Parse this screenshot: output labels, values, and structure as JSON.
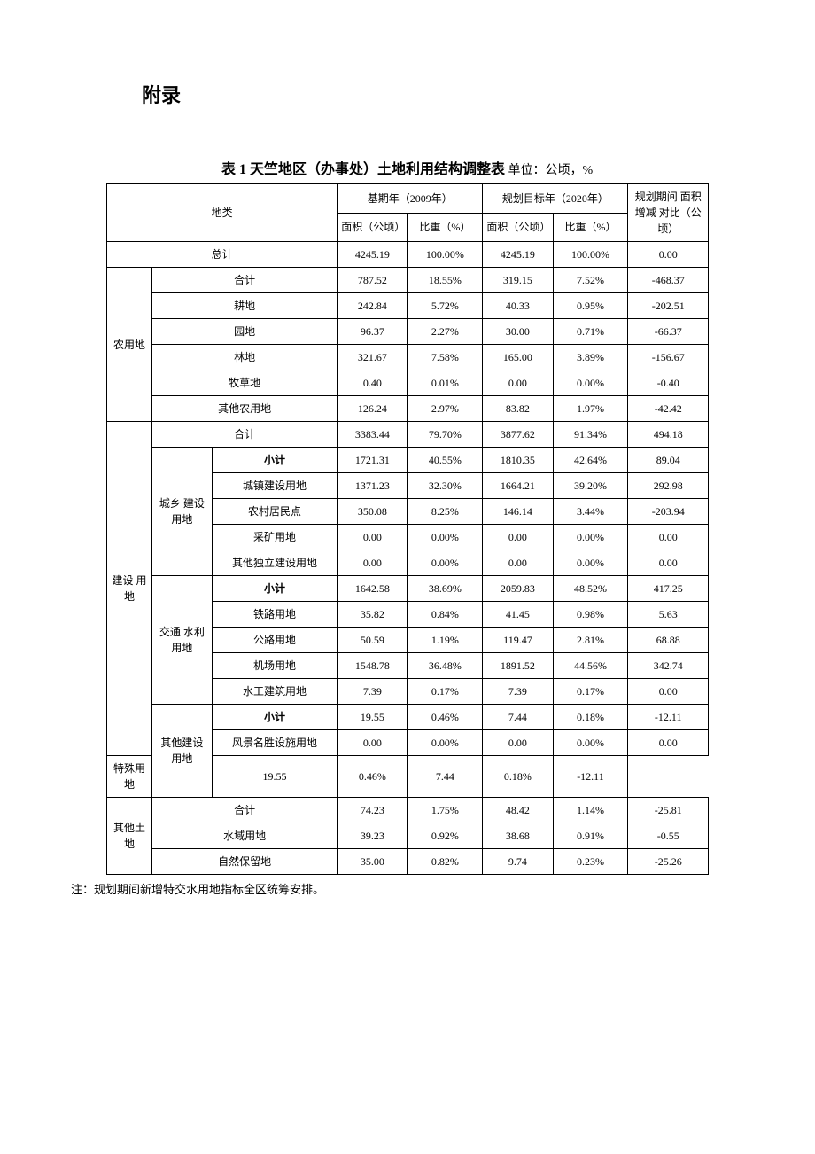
{
  "heading": "附录",
  "title_prefix": "表 1 天竺地区（办事处）土地利用结构调整表",
  "title_unit": " 单位：公顷，%",
  "header": {
    "category": "地类",
    "base_year": "基期年（2009年）",
    "target_year": "规划目标年（2020年）",
    "plan_period": "规划期间 面积增减 对比（公顷）",
    "area": "面积（公顷）",
    "pct": "比重（%）"
  },
  "rows": {
    "total": {
      "label": "总计",
      "v": [
        "4245.19",
        "100.00%",
        "4245.19",
        "100.00%",
        "0.00"
      ],
      "bold": true
    },
    "agri_sum": {
      "label": "合计",
      "v": [
        "787.52",
        "18.55%",
        "319.15",
        "7.52%",
        "-468.37"
      ],
      "bold": true
    },
    "agri": {
      "label": "农用地"
    },
    "gengdi": {
      "label": "耕地",
      "v": [
        "242.84",
        "5.72%",
        "40.33",
        "0.95%",
        "-202.51"
      ]
    },
    "yuandi": {
      "label": "园地",
      "v": [
        "96.37",
        "2.27%",
        "30.00",
        "0.71%",
        "-66.37"
      ]
    },
    "lindi": {
      "label": "林地",
      "v": [
        "321.67",
        "7.58%",
        "165.00",
        "3.89%",
        "-156.67"
      ]
    },
    "mucao": {
      "label": "牧草地",
      "v": [
        "0.40",
        "0.01%",
        "0.00",
        "0.00%",
        "-0.40"
      ]
    },
    "other_agri": {
      "label": "其他农用地",
      "v": [
        "126.24",
        "2.97%",
        "83.82",
        "1.97%",
        "-42.42"
      ]
    },
    "cons": {
      "label": "建设 用地"
    },
    "cons_sum": {
      "label": "合计",
      "v": [
        "3383.44",
        "79.70%",
        "3877.62",
        "91.34%",
        "494.18"
      ],
      "bold": true
    },
    "urban_grp": {
      "label": "城乡 建设 用地"
    },
    "urban_sub": {
      "label": "小计",
      "v": [
        "1721.31",
        "40.55%",
        "1810.35",
        "42.64%",
        "89.04"
      ],
      "bold": false,
      "sub": true
    },
    "chengzhen": {
      "label": "城镇建设用地",
      "v": [
        "1371.23",
        "32.30%",
        "1664.21",
        "39.20%",
        "292.98"
      ]
    },
    "nongcun": {
      "label": "农村居民点",
      "v": [
        "350.08",
        "8.25%",
        "146.14",
        "3.44%",
        "-203.94"
      ]
    },
    "caikuang": {
      "label": "采矿用地",
      "v": [
        "0.00",
        "0.00%",
        "0.00",
        "0.00%",
        "0.00"
      ]
    },
    "qita_duli": {
      "label": "其他独立建设用地",
      "v": [
        "0.00",
        "0.00%",
        "0.00",
        "0.00%",
        "0.00"
      ]
    },
    "trans_grp": {
      "label": "交通 水利 用地"
    },
    "trans_sub": {
      "label": "小计",
      "v": [
        "1642.58",
        "38.69%",
        "2059.83",
        "48.52%",
        "417.25"
      ],
      "sub": true
    },
    "tielu": {
      "label": "铁路用地",
      "v": [
        "35.82",
        "0.84%",
        "41.45",
        "0.98%",
        "5.63"
      ]
    },
    "gonglu": {
      "label": "公路用地",
      "v": [
        "50.59",
        "1.19%",
        "119.47",
        "2.81%",
        "68.88"
      ]
    },
    "jichang": {
      "label": "机场用地",
      "v": [
        "1548.78",
        "36.48%",
        "1891.52",
        "44.56%",
        "342.74"
      ]
    },
    "shuigong": {
      "label": "水工建筑用地",
      "v": [
        "7.39",
        "0.17%",
        "7.39",
        "0.17%",
        "0.00"
      ]
    },
    "other_grp": {
      "label": "其他建设用地"
    },
    "other_sub": {
      "label": "小计",
      "v": [
        "19.55",
        "0.46%",
        "7.44",
        "0.18%",
        "-12.11"
      ],
      "sub": true
    },
    "fengjing": {
      "label": "风景名胜设施用地",
      "v": [
        "0.00",
        "0.00%",
        "0.00",
        "0.00%",
        "0.00"
      ]
    },
    "teshu": {
      "label": "特殊用地",
      "v": [
        "19.55",
        "0.46%",
        "7.44",
        "0.18%",
        "-12.11"
      ]
    },
    "misc": {
      "label": "其他土地"
    },
    "misc_sum": {
      "label": "合计",
      "v": [
        "74.23",
        "1.75%",
        "48.42",
        "1.14%",
        "-25.81"
      ],
      "bold": true
    },
    "shuiyu": {
      "label": "水域用地",
      "v": [
        "39.23",
        "0.92%",
        "38.68",
        "0.91%",
        "-0.55"
      ]
    },
    "ziranbl": {
      "label": "自然保留地",
      "v": [
        "35.00",
        "0.82%",
        "9.74",
        "0.23%",
        "-25.26"
      ]
    }
  },
  "footnote": "注：规划期间新增特交水用地指标全区统筹安排。"
}
